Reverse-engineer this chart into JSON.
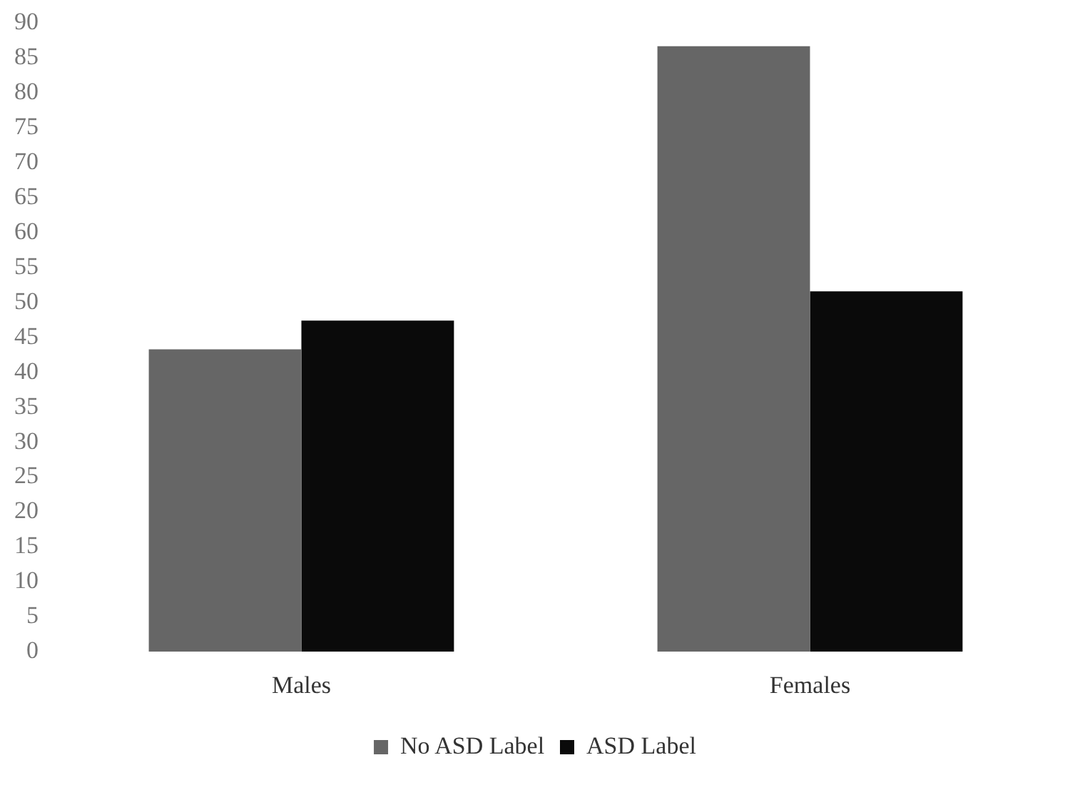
{
  "chart_data": {
    "type": "bar",
    "categories": [
      "Males",
      "Females"
    ],
    "series": [
      {
        "name": "No ASD Label",
        "color": "#666666",
        "values": [
          43.3,
          86.7
        ]
      },
      {
        "name": "ASD Label",
        "color": "#0a0a0a",
        "values": [
          47.4,
          51.6
        ]
      }
    ],
    "ylim": [
      0,
      90
    ],
    "yticks": [
      0,
      5,
      10,
      15,
      20,
      25,
      30,
      35,
      40,
      45,
      50,
      55,
      60,
      65,
      70,
      75,
      80,
      85,
      90
    ],
    "grid": false,
    "legend": "bottom"
  }
}
